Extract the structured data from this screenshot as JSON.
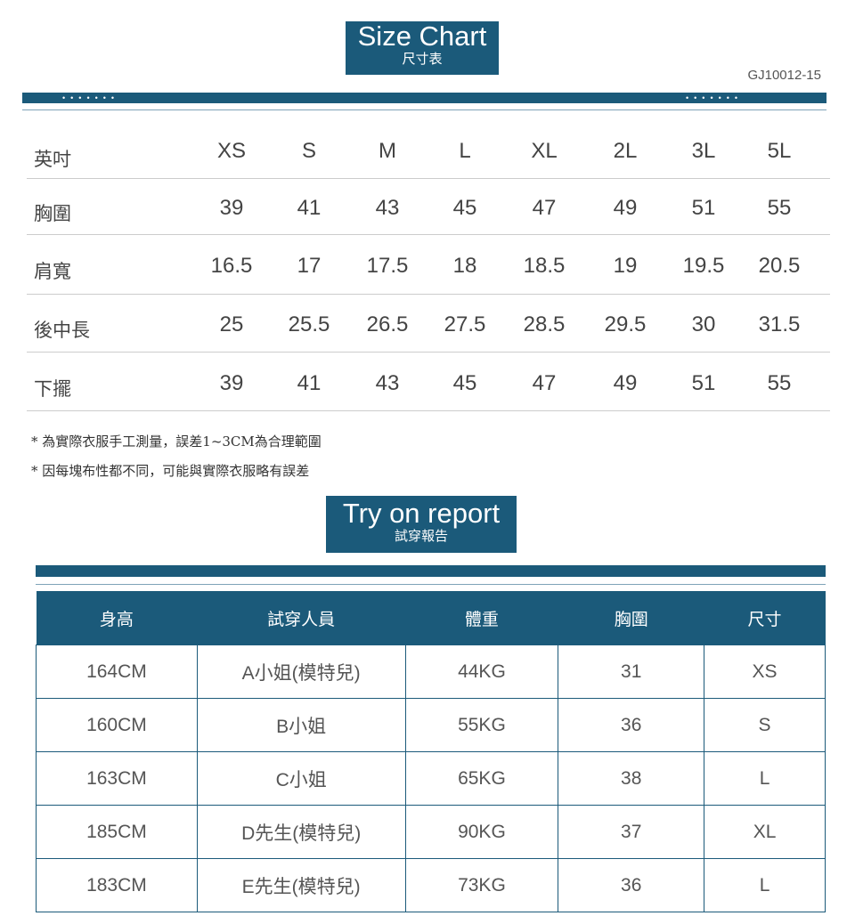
{
  "size_chart": {
    "title_en": "Size Chart",
    "title_zh": "尺寸表",
    "code": "GJ10012-15",
    "unit_label": "英吋",
    "sizes": [
      "XS",
      "S",
      "M",
      "L",
      "XL",
      "2L",
      "3L",
      "5L"
    ],
    "rows": [
      {
        "label": "胸圍",
        "values": [
          "39",
          "41",
          "43",
          "45",
          "47",
          "49",
          "51",
          "55"
        ]
      },
      {
        "label": "肩寬",
        "values": [
          "16.5",
          "17",
          "17.5",
          "18",
          "18.5",
          "19",
          "19.5",
          "20.5"
        ]
      },
      {
        "label": "後中長",
        "values": [
          "25",
          "25.5",
          "26.5",
          "27.5",
          "28.5",
          "29.5",
          "30",
          "31.5"
        ]
      },
      {
        "label": "下擺",
        "values": [
          "39",
          "41",
          "43",
          "45",
          "47",
          "49",
          "51",
          "55"
        ]
      }
    ],
    "notes": [
      "* 為實際衣服手工測量，誤差1~3CM為合理範圍",
      "* 因每塊布性都不同，可能與實際衣服略有誤差"
    ]
  },
  "try_on": {
    "title_en": "Try on report",
    "title_zh": "試穿報告",
    "headers": [
      "身高",
      "試穿人員",
      "體重",
      "胸圍",
      "尺寸"
    ],
    "rows": [
      [
        "164CM",
        "A小姐(模特兒)",
        "44KG",
        "31",
        "XS"
      ],
      [
        "160CM",
        "B小姐",
        "55KG",
        "36",
        "S"
      ],
      [
        "163CM",
        "C小姐",
        "65KG",
        "38",
        "L"
      ],
      [
        "185CM",
        "D先生(模特兒)",
        "90KG",
        "37",
        "XL"
      ],
      [
        "183CM",
        "E先生(模特兒)",
        "73KG",
        "36",
        "L"
      ]
    ]
  },
  "colors": {
    "accent": "#1b5a7a"
  }
}
